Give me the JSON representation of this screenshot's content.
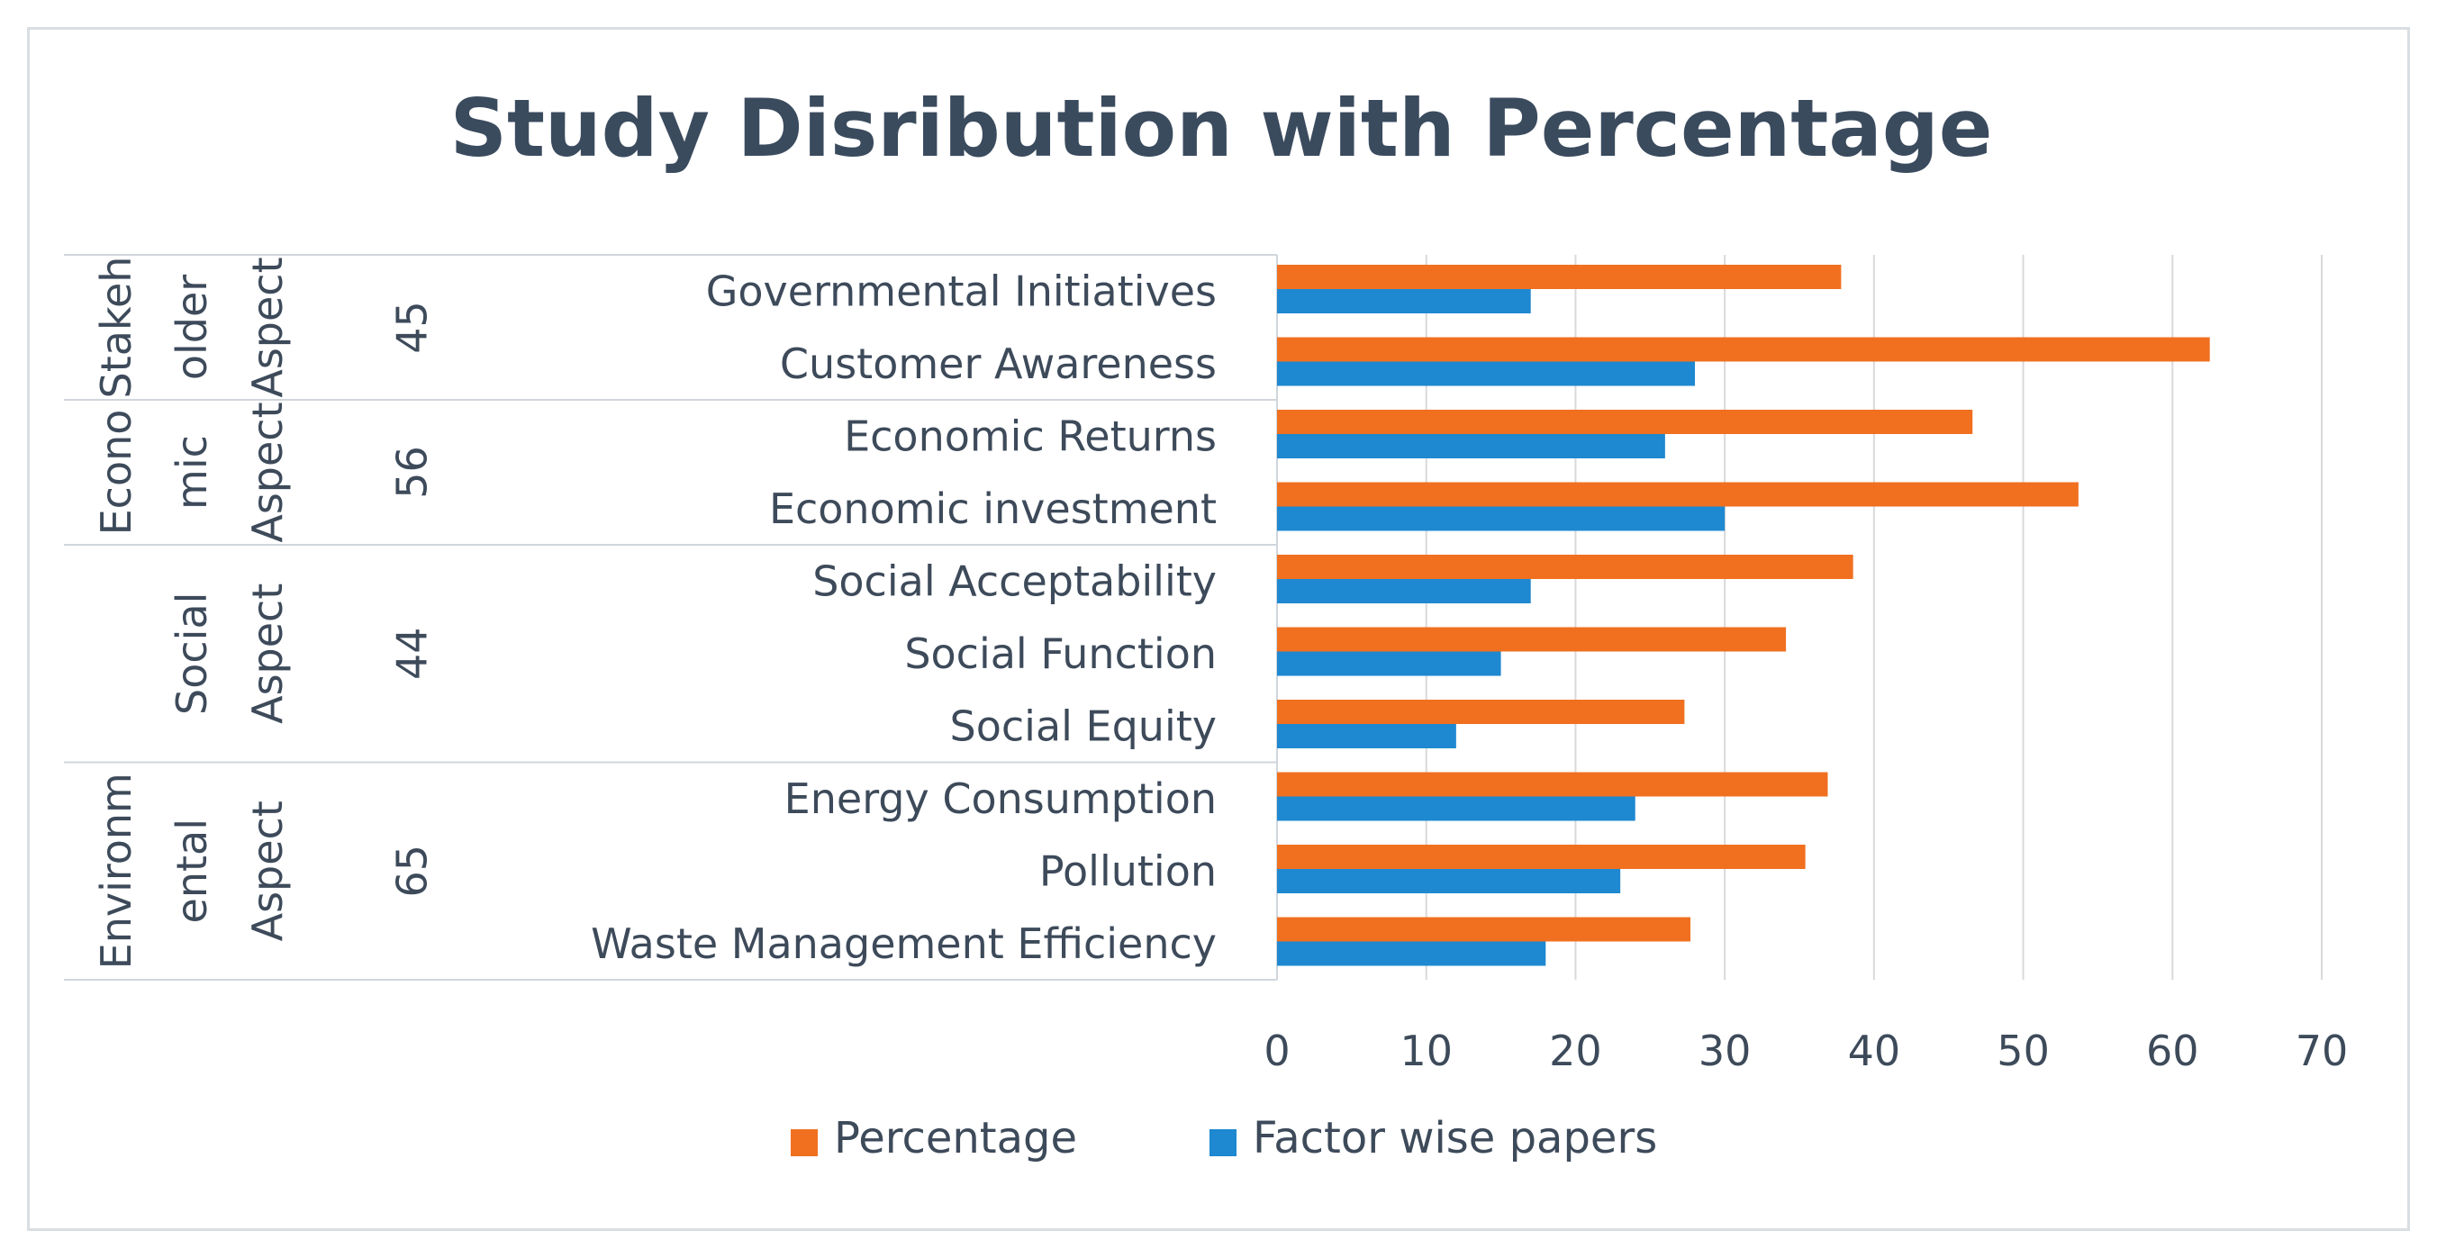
{
  "chart_data": {
    "type": "bar",
    "orientation": "horizontal",
    "title": "Study Disribution with Percentage",
    "xlabel": "",
    "ylabel": "",
    "xlim": [
      0,
      70
    ],
    "x_ticks": [
      0,
      10,
      20,
      30,
      40,
      50,
      60,
      70
    ],
    "grid": true,
    "legend_position": "bottom",
    "categories": [
      "Governmental Initiatives",
      "Customer Awareness",
      "Economic Returns",
      "Economic investment",
      "Social Acceptability",
      "Social Function",
      "Social Equity",
      "Energy Consumption",
      "Pollution",
      "Waste Management Efficiency"
    ],
    "groups": [
      {
        "label_lines": [
          "Stakeh",
          "older",
          "Aspect"
        ],
        "count": "45",
        "categories": [
          "Governmental Initiatives",
          "Customer Awareness"
        ]
      },
      {
        "label_lines": [
          "Econo",
          "mic",
          "Aspect"
        ],
        "count": "56",
        "categories": [
          "Economic Returns",
          "Economic investment"
        ]
      },
      {
        "label_lines": [
          "Social",
          "Aspect"
        ],
        "count": "44",
        "categories": [
          "Social Acceptability",
          "Social Function",
          "Social Equity"
        ]
      },
      {
        "label_lines": [
          "Environm",
          "ental",
          "Aspect"
        ],
        "count": "65",
        "categories": [
          "Energy Consumption",
          "Pollution",
          "Waste Management Efficiency"
        ]
      }
    ],
    "series": [
      {
        "name": "Percentage",
        "color": "#f07020",
        "values": [
          37.8,
          62.5,
          46.6,
          53.7,
          38.6,
          34.1,
          27.3,
          36.9,
          35.4,
          27.7
        ]
      },
      {
        "name": "Factor wise papers",
        "color": "#1e88d0",
        "values": [
          17,
          28,
          26,
          30,
          17,
          15,
          12,
          24,
          23,
          18
        ]
      }
    ]
  }
}
